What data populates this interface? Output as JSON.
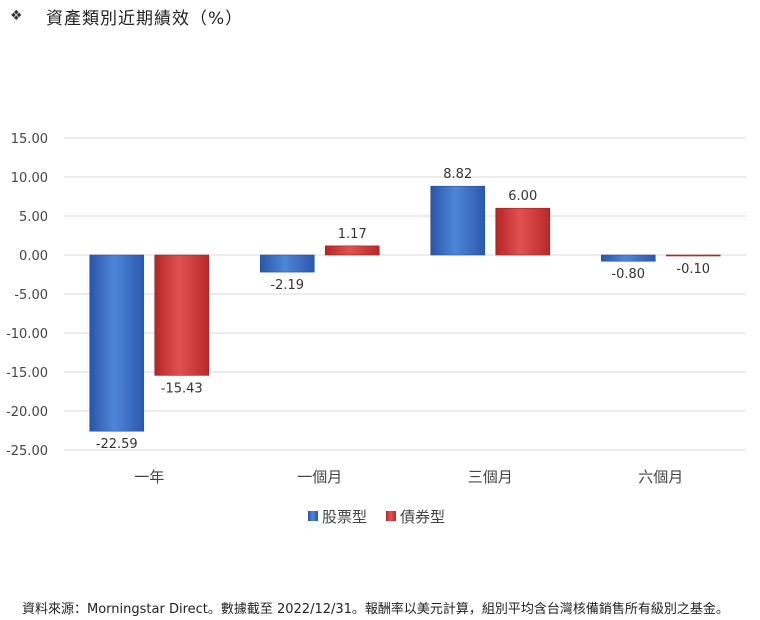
{
  "header": {
    "bullet": "❖",
    "title": "資產類別近期績效（%）"
  },
  "chart_data": {
    "type": "bar",
    "categories": [
      "一年",
      "一個月",
      "三個月",
      "六個月"
    ],
    "series": [
      {
        "name": "股票型",
        "values": [
          -22.59,
          -2.19,
          8.82,
          -0.8
        ],
        "labels": [
          "-22.59",
          "-2.19",
          "8.82",
          "-0.80"
        ],
        "color": "#3a6fc4"
      },
      {
        "name": "債券型",
        "values": [
          -15.43,
          1.17,
          6.0,
          -0.1
        ],
        "labels": [
          "-15.43",
          "1.17",
          "6.00",
          "-0.10"
        ],
        "color": "#d03a3a"
      }
    ],
    "yticks": [
      "15.00",
      "10.00",
      "5.00",
      "0.00",
      "-5.00",
      "-10.00",
      "-15.00",
      "-20.00",
      "-25.00"
    ],
    "ylim": [
      -25,
      15
    ],
    "grid": true,
    "legend_position": "bottom"
  },
  "footer": {
    "source": "資料來源：Morningstar Direct。數據截至 2022/12/31。報酬率以美元計算，組別平均含台灣核備銷售所有級別之基金。"
  }
}
